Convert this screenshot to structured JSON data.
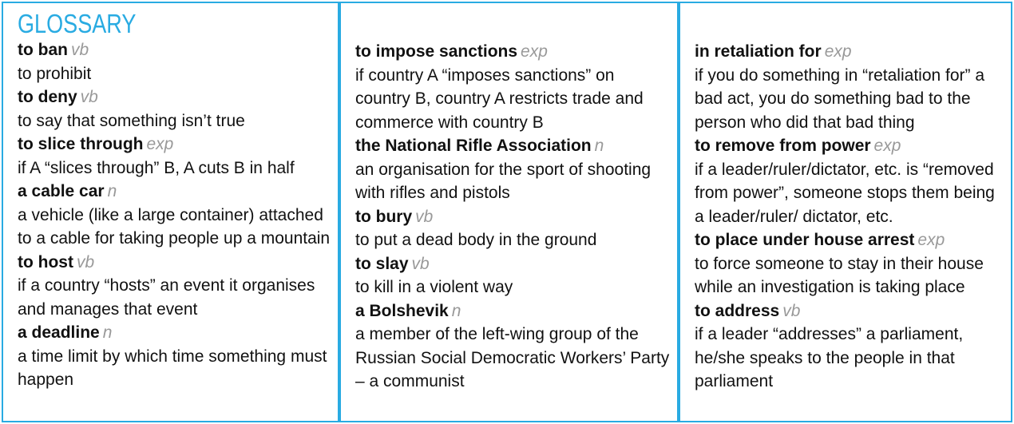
{
  "glossary": {
    "title": "GLOSSARY",
    "columns": [
      {
        "entries": [
          {
            "term": "to ban",
            "pos": "vb",
            "definition": "to prohibit"
          },
          {
            "term": "to deny",
            "pos": "vb",
            "definition": "to say that something isn’t true"
          },
          {
            "term": "to slice through",
            "pos": "exp",
            "definition": "if A “slices through” B, A cuts B in half"
          },
          {
            "term": "a cable car",
            "pos": "n",
            "definition": "a vehicle (like a large container) attached to a cable for taking people up a mountain"
          },
          {
            "term": "to host",
            "pos": "vb",
            "definition": "if a country “hosts” an event it organises and manages that event"
          },
          {
            "term": "a deadline",
            "pos": "n",
            "definition": "a time limit by which time something must happen"
          }
        ]
      },
      {
        "entries": [
          {
            "term": "to impose sanctions",
            "pos": "exp",
            "definition": "if country A “imposes sanctions” on country B, country A restricts trade and commerce with country B"
          },
          {
            "term": "the National Rifle Association",
            "pos": "n",
            "definition": "an organisation for the sport of shooting with rifles and pistols"
          },
          {
            "term": "to bury",
            "pos": "vb",
            "definition": "to put a dead body in the ground"
          },
          {
            "term": "to slay",
            "pos": "vb",
            "definition": "to kill in a violent way"
          },
          {
            "term": "a Bolshevik",
            "pos": "n",
            "definition": "a member of the left-wing group of the Russian Social Democratic Workers’ Party – a communist"
          }
        ]
      },
      {
        "entries": [
          {
            "term": "in retaliation for",
            "pos": "exp",
            "definition": "if you do something in “retaliation for” a bad act, you do something bad to the person who did that bad thing"
          },
          {
            "term": "to remove from power",
            "pos": "exp",
            "definition": "if a leader/ruler/dictator, etc. is “removed from power”, someone stops them being a leader/ruler/ dictator, etc."
          },
          {
            "term": "to place under house arrest",
            "pos": "exp",
            "definition": "to force someone to stay in their house while an investigation is taking place"
          },
          {
            "term": "to address",
            "pos": "vb",
            "definition": "if a leader “addresses” a parliament, he/she speaks to the people in that parliament"
          }
        ]
      }
    ]
  }
}
